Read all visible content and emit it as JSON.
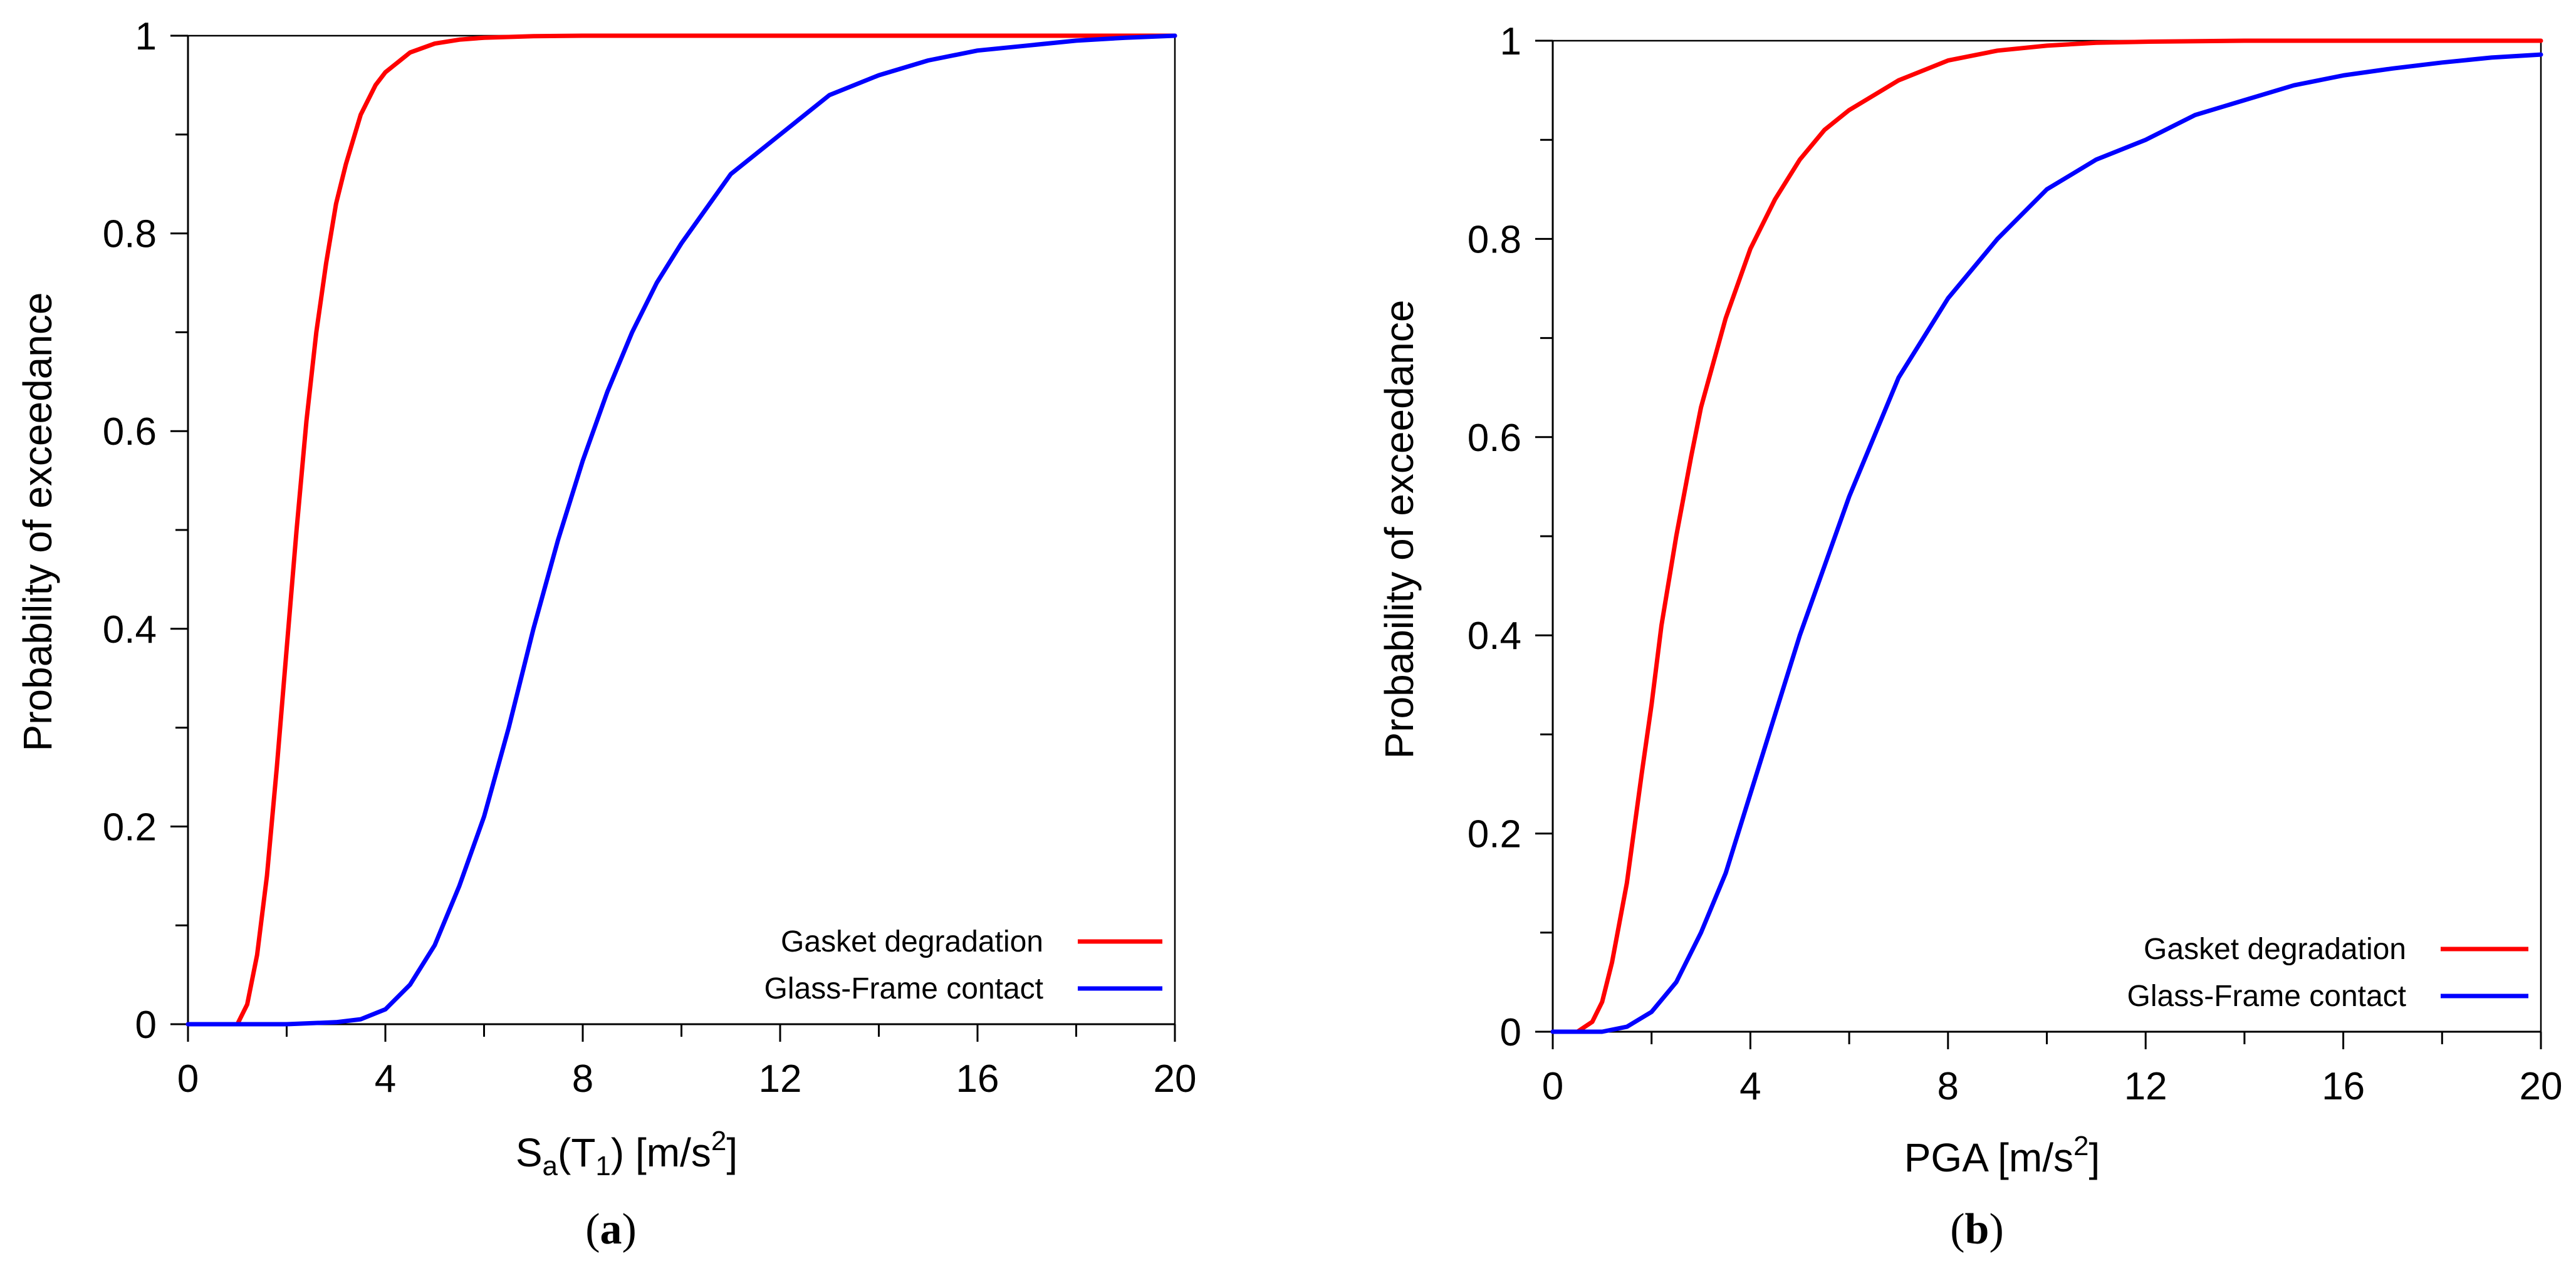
{
  "figure": {
    "panels": [
      {
        "caption_open": "(",
        "caption_letter": "a",
        "caption_close": ")",
        "ylabel": "Probability of exceedance",
        "xlabel": {
          "prefix": "S",
          "sub1": "a",
          "mid": "(T",
          "sub2": "1",
          "unit": ") [m/s",
          "sup": "2",
          "close": "]"
        }
      },
      {
        "caption_open": "(",
        "caption_letter": "b",
        "caption_close": ")",
        "ylabel": "Probability of exceedance",
        "xlabel": {
          "prefix": "PGA [m/s",
          "sup": "2",
          "close": "]"
        }
      }
    ]
  },
  "colors": {
    "gasket": "#ff0000",
    "contact": "#0000ff",
    "axis": "#000000"
  },
  "chart_data": [
    {
      "type": "line",
      "xlim": [
        0,
        20
      ],
      "ylim": [
        0,
        1
      ],
      "xticks": [
        "0",
        "4",
        "8",
        "12",
        "16",
        "20"
      ],
      "yticks": [
        "0",
        "0.2",
        "0.4",
        "0.6",
        "0.8",
        "1"
      ],
      "legend_position": "bottom-right",
      "grid": false,
      "series": [
        {
          "name": "Gasket degradation",
          "color": "#ff0000",
          "x": [
            0,
            1.0,
            1.2,
            1.4,
            1.6,
            1.8,
            2.0,
            2.2,
            2.4,
            2.6,
            2.8,
            3.0,
            3.2,
            3.5,
            3.8,
            4.0,
            4.5,
            5.0,
            5.5,
            6.0,
            7.0,
            8.0,
            10.0,
            14.0,
            20.0
          ],
          "y": [
            0,
            0.0,
            0.02,
            0.07,
            0.15,
            0.26,
            0.38,
            0.5,
            0.61,
            0.7,
            0.77,
            0.83,
            0.87,
            0.92,
            0.95,
            0.963,
            0.983,
            0.992,
            0.996,
            0.998,
            0.9995,
            1.0,
            1.0,
            1.0,
            1.0
          ]
        },
        {
          "name": "Glass-Frame contact",
          "color": "#0000ff",
          "x": [
            0,
            2.0,
            3.0,
            3.5,
            4.0,
            4.5,
            5.0,
            5.5,
            6.0,
            6.5,
            7.0,
            7.5,
            8.0,
            8.5,
            9.0,
            9.5,
            10.0,
            11.0,
            12.0,
            13.0,
            14.0,
            15.0,
            16.0,
            17.0,
            18.0,
            19.0,
            20.0
          ],
          "y": [
            0,
            0.0,
            0.002,
            0.005,
            0.015,
            0.04,
            0.08,
            0.14,
            0.21,
            0.3,
            0.4,
            0.49,
            0.57,
            0.64,
            0.7,
            0.75,
            0.79,
            0.86,
            0.9,
            0.94,
            0.96,
            0.975,
            0.985,
            0.99,
            0.995,
            0.998,
            1.0
          ]
        }
      ]
    },
    {
      "type": "line",
      "xlim": [
        0,
        20
      ],
      "ylim": [
        0,
        1
      ],
      "xticks": [
        "0",
        "4",
        "8",
        "12",
        "16",
        "20"
      ],
      "yticks": [
        "0",
        "0.2",
        "0.4",
        "0.6",
        "0.8",
        "1"
      ],
      "legend_position": "bottom-right",
      "grid": false,
      "series": [
        {
          "name": "Gasket degradation",
          "color": "#ff0000",
          "x": [
            0,
            0.5,
            0.8,
            1.0,
            1.2,
            1.5,
            1.8,
            2.0,
            2.2,
            2.5,
            2.8,
            3.0,
            3.5,
            4.0,
            4.5,
            5.0,
            5.5,
            6.0,
            7.0,
            8.0,
            9.0,
            10.0,
            11.0,
            12.0,
            14.0,
            16.0,
            20.0
          ],
          "y": [
            0,
            0.0,
            0.01,
            0.03,
            0.07,
            0.15,
            0.26,
            0.33,
            0.41,
            0.5,
            0.58,
            0.63,
            0.72,
            0.79,
            0.84,
            0.88,
            0.91,
            0.93,
            0.96,
            0.98,
            0.99,
            0.995,
            0.998,
            0.999,
            1.0,
            1.0,
            1.0
          ]
        },
        {
          "name": "Glass-Frame contact",
          "color": "#0000ff",
          "x": [
            0,
            1.0,
            1.5,
            2.0,
            2.5,
            3.0,
            3.5,
            4.0,
            4.5,
            5.0,
            5.5,
            6.0,
            7.0,
            8.0,
            9.0,
            10.0,
            11.0,
            12.0,
            13.0,
            14.0,
            15.0,
            16.0,
            17.0,
            18.0,
            19.0,
            20.0
          ],
          "y": [
            0,
            0.0,
            0.005,
            0.02,
            0.05,
            0.1,
            0.16,
            0.24,
            0.32,
            0.4,
            0.47,
            0.54,
            0.66,
            0.74,
            0.8,
            0.85,
            0.88,
            0.9,
            0.925,
            0.94,
            0.955,
            0.965,
            0.972,
            0.978,
            0.983,
            0.986
          ]
        }
      ]
    }
  ]
}
